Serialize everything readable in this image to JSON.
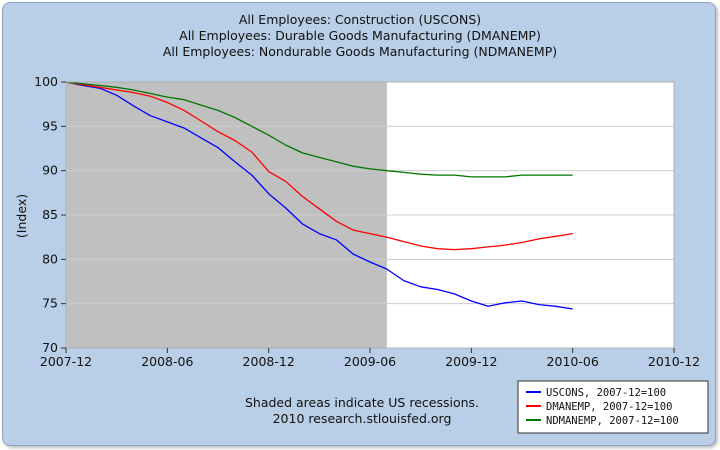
{
  "chart_data": {
    "type": "line",
    "titles": [
      "All Employees: Construction (USCONS)",
      "All Employees: Durable Goods Manufacturing (DMANEMP)",
      "All Employees: Nondurable Goods Manufacturing (NDMANEMP)"
    ],
    "ylabel": "(Index)",
    "ylim": [
      70,
      100
    ],
    "yticks": [
      70,
      75,
      80,
      85,
      90,
      95,
      100
    ],
    "xlim": [
      0,
      36
    ],
    "xticks": [
      {
        "t": 0,
        "label": "2007-12"
      },
      {
        "t": 6,
        "label": "2008-06"
      },
      {
        "t": 12,
        "label": "2008-12"
      },
      {
        "t": 18,
        "label": "2009-06"
      },
      {
        "t": 24,
        "label": "2009-12"
      },
      {
        "t": 30,
        "label": "2010-06"
      },
      {
        "t": 36,
        "label": "2010-12"
      }
    ],
    "grid": true,
    "recession": {
      "start": 0,
      "end": 19
    },
    "series": [
      {
        "name": "USCONS",
        "legend": "USCONS, 2007-12=100",
        "color": "#0000ff",
        "values": [
          100,
          99.6,
          99.3,
          98.5,
          97.3,
          96.2,
          95.5,
          94.8,
          93.7,
          92.6,
          91.0,
          89.5,
          87.4,
          85.8,
          84.0,
          82.9,
          82.2,
          80.6,
          79.7,
          78.9,
          77.6,
          76.9,
          76.6,
          76.1,
          75.3,
          74.7,
          75.1,
          75.3,
          74.9,
          74.7,
          74.4
        ]
      },
      {
        "name": "DMANEMP",
        "legend": "DMANEMP, 2007-12=100",
        "color": "#ff0000",
        "values": [
          100,
          99.7,
          99.4,
          99.1,
          98.8,
          98.4,
          97.7,
          96.8,
          95.6,
          94.4,
          93.4,
          92.1,
          89.9,
          88.8,
          87.1,
          85.7,
          84.3,
          83.3,
          82.9,
          82.5,
          82.0,
          81.5,
          81.2,
          81.1,
          81.2,
          81.4,
          81.6,
          81.9,
          82.3,
          82.6,
          82.9
        ]
      },
      {
        "name": "NDMANEMP",
        "legend": "NDMANEMP, 2007-12=100",
        "color": "#007700",
        "values": [
          100,
          99.8,
          99.6,
          99.4,
          99.1,
          98.7,
          98.3,
          98.0,
          97.4,
          96.8,
          96.0,
          95.0,
          94.0,
          92.9,
          92.0,
          91.5,
          91.0,
          90.5,
          90.2,
          90.0,
          89.8,
          89.6,
          89.5,
          89.5,
          89.3,
          89.3,
          89.3,
          89.5,
          89.5,
          89.5,
          89.5
        ]
      }
    ],
    "notes": [
      "Shaded areas indicate US recessions.",
      "2010 research.stlouisfed.org"
    ]
  }
}
